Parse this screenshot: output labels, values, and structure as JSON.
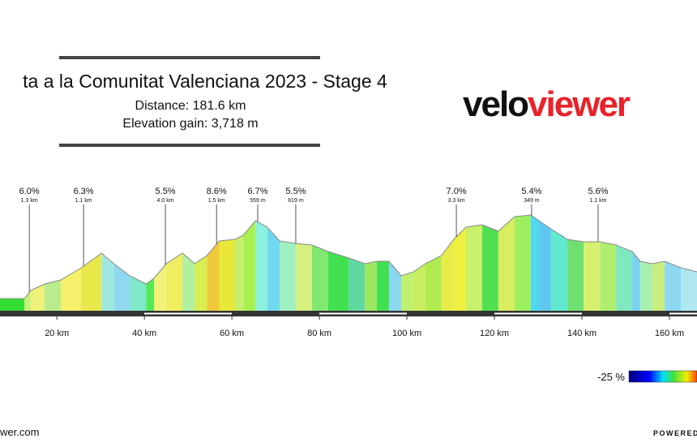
{
  "chart_data": {
    "type": "elevation-profile",
    "title": "ta a la Comunitat Valenciana 2023 - Stage 4",
    "subtitle": [
      "Distance: 181.6 km",
      "Elevation gain: 3,718 m"
    ],
    "logo": [
      "velo",
      "viewer"
    ],
    "km": [
      7.0,
      12.6,
      14.0,
      17.2,
      20.9,
      25.6,
      30.2,
      33.0,
      36.7,
      40.4,
      42.2,
      45.0,
      48.7,
      51.5,
      54.3,
      57.1,
      60.7,
      62.6,
      65.4,
      68.1,
      70.9,
      74.6,
      78.3,
      82.0,
      86.7,
      90.4,
      93.1,
      95.9,
      98.7,
      101.5,
      104.2,
      107.9,
      110.7,
      113.5,
      117.2,
      120.9,
      124.6,
      128.3,
      130.2,
      132.9,
      136.7,
      140.4,
      144.1,
      147.8,
      151.5,
      153.3,
      156.1,
      158.9,
      162.6,
      166.3
    ],
    "elevation": [
      136,
      136,
      216,
      280,
      320,
      440,
      584,
      480,
      360,
      280,
      336,
      480,
      584,
      480,
      560,
      704,
      720,
      760,
      904,
      840,
      704,
      680,
      664,
      600,
      536,
      480,
      504,
      504,
      360,
      400,
      480,
      560,
      720,
      840,
      864,
      800,
      944,
      960,
      904,
      824,
      720,
      696,
      696,
      664,
      600,
      504,
      480,
      504,
      440,
      400
    ],
    "segment_colors": [
      "#33dd33",
      "#c8f07a",
      "#eef27a",
      "#b8ec8c",
      "#f4f06a",
      "#e8e84a",
      "#9ee8e0",
      "#8fd8f0",
      "#7ee8c8",
      "#55e855",
      "#f2f27a",
      "#f0ee60",
      "#b0f0a0",
      "#d8ee50",
      "#f0c83c",
      "#e8e838",
      "#c8ee70",
      "#a8f050",
      "#8cf0e0",
      "#70d8f0",
      "#a0f0c0",
      "#d8f080",
      "#80e870",
      "#40e050",
      "#60d8a0",
      "#9ce860",
      "#40e050",
      "#88d8f0",
      "#c0f070",
      "#c8ee60",
      "#b0ec50",
      "#e8ec48",
      "#f0f040",
      "#c8f06a",
      "#50e050",
      "#d8ee60",
      "#9cf060",
      "#50d8f0",
      "#60c8f0",
      "#60e8d0",
      "#70e070",
      "#d8f070",
      "#b0ee70",
      "#80e8c0",
      "#7ad0f0",
      "#a8f0b0",
      "#c8ee80",
      "#8cd8f0",
      "#b0e8f0"
    ],
    "climbs": [
      {
        "km": 13.7,
        "grade": "6.0%",
        "length": "1.3 km"
      },
      {
        "km": 26.1,
        "grade": "6.3%",
        "length": "1.1 km"
      },
      {
        "km": 44.8,
        "grade": "5.5%",
        "length": "4.0 km"
      },
      {
        "km": 56.5,
        "grade": "8.6%",
        "length": "1.5 km"
      },
      {
        "km": 65.9,
        "grade": "6.7%",
        "length": "559 m"
      },
      {
        "km": 74.6,
        "grade": "5.5%",
        "length": "819 m"
      },
      {
        "km": 111.3,
        "grade": "7.0%",
        "length": "3.3 km"
      },
      {
        "km": 128.5,
        "grade": "5.4%",
        "length": "349 m"
      },
      {
        "km": 143.7,
        "grade": "5.6%",
        "length": "1.1 km"
      }
    ],
    "xlim": [
      7.0,
      166.3
    ],
    "xticks": [
      {
        "value": 20,
        "label": "20 km"
      },
      {
        "value": 40,
        "label": "40 km"
      },
      {
        "value": 60,
        "label": "60 km"
      },
      {
        "value": 80,
        "label": "80 km"
      },
      {
        "value": 100,
        "label": "100 km"
      },
      {
        "value": 120,
        "label": "120 km"
      },
      {
        "value": 140,
        "label": "140 km"
      },
      {
        "value": 160,
        "label": "160 km"
      }
    ],
    "ylim": [
      0,
      1200
    ],
    "legend_label": "-25 %",
    "footer_left": "wer.com",
    "footer_right": "POWERED"
  }
}
